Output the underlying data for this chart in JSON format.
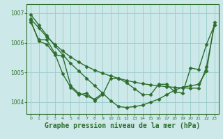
{
  "background_color": "#cce8e8",
  "grid_color": "#99cccc",
  "line_color": "#2d6e2d",
  "marker_color": "#2d6e2d",
  "xlabel": "Graphe pression niveau de la mer (hPa)",
  "xlabel_fontsize": 7.0,
  "xlim": [
    -0.5,
    23.5
  ],
  "ylim": [
    1003.6,
    1007.3
  ],
  "yticks": [
    1004,
    1005,
    1006,
    1007
  ],
  "xticks": [
    0,
    1,
    2,
    3,
    4,
    5,
    6,
    7,
    8,
    9,
    10,
    11,
    12,
    13,
    14,
    15,
    16,
    17,
    18,
    19,
    20,
    21,
    22,
    23
  ],
  "series": [
    {
      "x": [
        0,
        1,
        2,
        3,
        4,
        5,
        6,
        7,
        8,
        9,
        10,
        11,
        12,
        13,
        14,
        15,
        16,
        17,
        18,
        19,
        20,
        21,
        22,
        23
      ],
      "y": [
        1006.95,
        1006.6,
        1006.25,
        1005.9,
        1005.6,
        1005.3,
        1005.05,
        1004.8,
        1004.55,
        1004.3,
        1004.05,
        1003.85,
        1003.82,
        1003.85,
        1003.9,
        1004.0,
        1004.1,
        1004.25,
        1004.4,
        1004.5,
        1004.55,
        1004.6,
        1005.05,
        1006.7
      ],
      "marker": "D",
      "markersize": 2.5,
      "linewidth": 1.0
    },
    {
      "x": [
        0,
        1,
        2,
        3,
        4,
        5,
        6,
        7,
        8,
        9,
        10,
        11,
        12,
        13,
        14,
        15,
        16,
        17,
        18,
        19,
        20,
        21,
        22,
        23
      ],
      "y": [
        1006.8,
        1006.5,
        1006.2,
        1005.95,
        1005.72,
        1005.52,
        1005.35,
        1005.2,
        1005.08,
        1004.97,
        1004.88,
        1004.8,
        1004.73,
        1004.67,
        1004.62,
        1004.58,
        1004.55,
        1004.52,
        1004.5,
        1004.48,
        1004.47,
        1004.47,
        1005.2,
        1006.6
      ],
      "marker": "D",
      "markersize": 2.5,
      "linewidth": 1.0
    },
    {
      "x": [
        0,
        1,
        2,
        3,
        4,
        5,
        6,
        7,
        8,
        9,
        10,
        11,
        12,
        13,
        14,
        15,
        16,
        17,
        18,
        19,
        20,
        21,
        22,
        23
      ],
      "y": [
        1006.7,
        1006.1,
        1006.1,
        1005.65,
        1004.95,
        1004.5,
        1004.25,
        1004.3,
        1004.05,
        1004.25,
        1004.8,
        1004.8,
        1004.65,
        1004.45,
        1004.25,
        1004.25,
        1004.6,
        1004.6,
        1004.35,
        1004.3,
        1005.15,
        1005.1,
        1005.95,
        1006.6
      ],
      "marker": "D",
      "markersize": 2.5,
      "linewidth": 1.0
    },
    {
      "x": [
        0,
        1,
        2,
        3,
        4,
        5,
        6,
        7,
        8,
        9
      ],
      "y": [
        1006.75,
        1006.05,
        1005.95,
        1005.6,
        1005.55,
        1004.55,
        1004.3,
        1004.2,
        1004.1,
        1004.3
      ],
      "marker": "D",
      "markersize": 2.5,
      "linewidth": 1.0
    }
  ]
}
